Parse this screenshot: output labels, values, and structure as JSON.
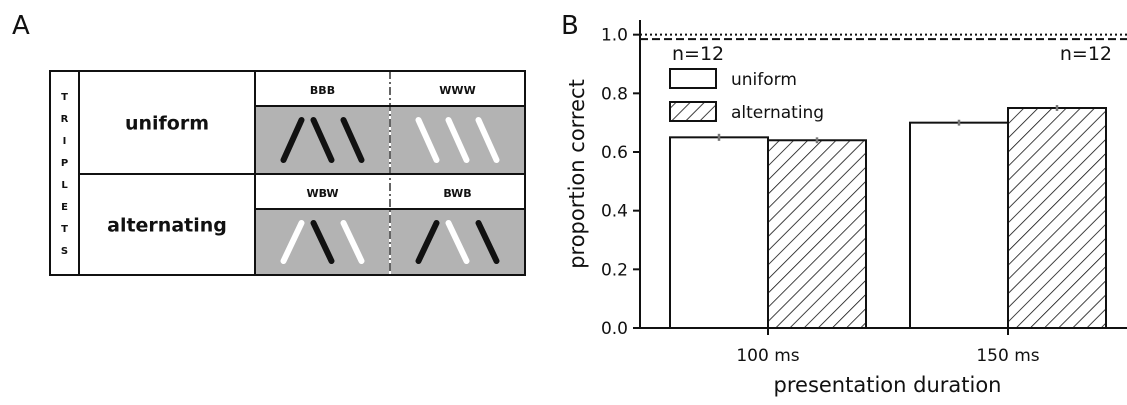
{
  "panel_labels": {
    "a": "A",
    "b": "B"
  },
  "panel_a": {
    "vertical_title_letters": [
      "T",
      "R",
      "I",
      "P",
      "L",
      "E",
      "T",
      "S"
    ],
    "rows": [
      {
        "label": "uniform",
        "cells": [
          {
            "header": "BBB",
            "bars": [
              "black",
              "black",
              "black"
            ],
            "tilts": [
              "left",
              "right",
              "right"
            ]
          },
          {
            "header": "WWW",
            "bars": [
              "white",
              "white",
              "white"
            ],
            "tilts": [
              "right",
              "right",
              "right"
            ]
          }
        ]
      },
      {
        "label": "alternating",
        "cells": [
          {
            "header": "WBW",
            "bars": [
              "white",
              "black",
              "white"
            ],
            "tilts": [
              "left",
              "right",
              "right"
            ]
          },
          {
            "header": "BWB",
            "bars": [
              "black",
              "white",
              "black"
            ],
            "tilts": [
              "left",
              "right",
              "right"
            ]
          }
        ]
      }
    ],
    "cell_bg": "#b3b3b3"
  },
  "chart_data": {
    "type": "bar",
    "categories": [
      "100 ms",
      "150 ms"
    ],
    "series": [
      {
        "name": "uniform",
        "values": [
          0.65,
          0.7
        ],
        "errors": [
          0.012,
          0.01
        ],
        "fill": "none"
      },
      {
        "name": "alternating",
        "values": [
          0.64,
          0.75
        ],
        "errors": [
          0.01,
          0.01
        ],
        "fill": "hatched"
      }
    ],
    "xlabel": "presentation duration",
    "ylabel": "proportion correct",
    "ylim": [
      0.0,
      1.05
    ],
    "yticks": [
      "0.0",
      "0.2",
      "0.4",
      "0.6",
      "0.8",
      "1.0"
    ],
    "ytick_values": [
      0.0,
      0.2,
      0.4,
      0.6,
      0.8,
      1.0
    ],
    "reference_lines": [
      {
        "y": 1.0,
        "style": "dotted"
      },
      {
        "y": 0.985,
        "style": "dashed"
      }
    ],
    "annotations": [
      "n=12",
      "n=12"
    ],
    "legend": "top-left",
    "grid": false
  }
}
